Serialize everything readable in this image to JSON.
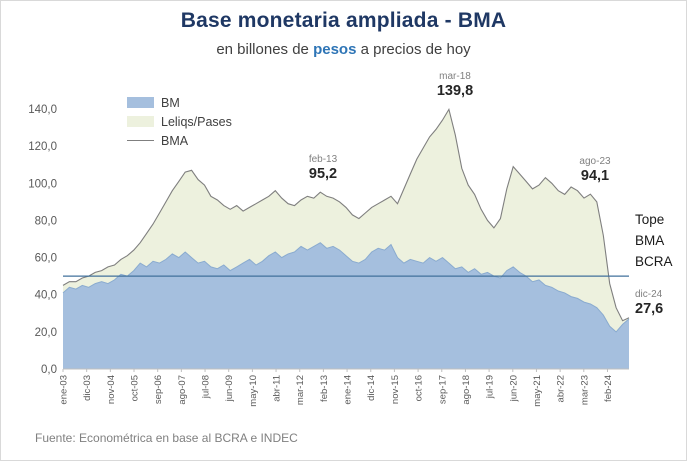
{
  "chart_data": {
    "type": "area",
    "title": "Base monetaria ampliada - BMA",
    "subtitle": {
      "prefix": "en billones de ",
      "highlight": "pesos",
      "suffix": " a precios de hoy"
    },
    "ylim": [
      0,
      140
    ],
    "y_ticks": [
      "0,0",
      "20,0",
      "40,0",
      "60,0",
      "80,0",
      "100,0",
      "120,0",
      "140,0"
    ],
    "x_tick_labels": [
      "ene-03",
      "dic-03",
      "nov-04",
      "oct-05",
      "sep-06",
      "ago-07",
      "jul-08",
      "jun-09",
      "may-10",
      "abr-11",
      "mar-12",
      "feb-13",
      "ene-14",
      "dic-14",
      "nov-15",
      "oct-16",
      "sep-17",
      "ago-18",
      "jul-19",
      "jun-20",
      "may-21",
      "abr-22",
      "mar-23",
      "feb-24"
    ],
    "x_tick_months": [
      0,
      11,
      22,
      33,
      44,
      55,
      66,
      77,
      88,
      99,
      110,
      121,
      132,
      143,
      154,
      165,
      176,
      187,
      198,
      209,
      220,
      231,
      242,
      253
    ],
    "months_total": 264,
    "legend": [
      {
        "label": "BM",
        "swatch": "area",
        "color": "#a5bfde"
      },
      {
        "label": "Leliqs/Pases",
        "swatch": "area",
        "color": "#edf1de"
      },
      {
        "label": "BMA",
        "swatch": "line",
        "color": "#7f7f7f"
      }
    ],
    "series": [
      {
        "name": "BM",
        "type": "area",
        "values": [
          41,
          44,
          43,
          45,
          44,
          46,
          47,
          46,
          48,
          51,
          50,
          53,
          57,
          55,
          58,
          57,
          59,
          62,
          60,
          63,
          60,
          57,
          58,
          55,
          54,
          56,
          53,
          55,
          57,
          59,
          56,
          58,
          61,
          63,
          60,
          62,
          63,
          66,
          64,
          66,
          68,
          65,
          66,
          64,
          61,
          58,
          57,
          59,
          63,
          65,
          64,
          67,
          60,
          57,
          59,
          58,
          57,
          60,
          58,
          60,
          57,
          54,
          55,
          52,
          54,
          51,
          52,
          50,
          49,
          53,
          55,
          52,
          50,
          47,
          48,
          45,
          44,
          42,
          41,
          39,
          38,
          36,
          35,
          33,
          29,
          23,
          20,
          24,
          27
        ]
      },
      {
        "name": "BMA",
        "type": "line",
        "values": [
          45,
          47,
          47,
          49,
          50,
          52,
          53,
          55,
          56,
          59,
          61,
          64,
          68,
          73,
          78,
          84,
          90,
          96,
          101,
          106,
          107,
          102,
          99,
          93,
          91,
          88,
          86,
          88,
          85,
          87,
          89,
          91,
          93,
          96,
          92,
          89,
          88,
          91,
          93,
          92,
          95.2,
          93,
          92,
          90,
          87,
          83,
          81,
          84,
          87,
          89,
          91,
          93,
          89,
          97,
          105,
          113,
          119,
          125,
          129,
          134,
          139.8,
          126,
          108,
          99,
          94,
          86,
          80,
          76,
          81,
          97,
          109,
          105,
          101,
          97,
          99,
          103,
          100,
          96,
          94,
          98,
          96,
          92,
          94.1,
          90,
          72,
          46,
          33,
          26,
          27.6
        ]
      }
    ],
    "annotations": [
      {
        "date": "feb-13",
        "value": "95,2",
        "value_num": 95.2,
        "month": 121
      },
      {
        "date": "mar-18",
        "value": "139,8",
        "value_num": 139.8,
        "month": 182
      },
      {
        "date": "ago-23",
        "value": "94,1",
        "value_num": 94.1,
        "month": 247
      }
    ],
    "right_annotation": {
      "date": "dic-24",
      "value": "27,6",
      "value_num": 27.6
    },
    "tope": {
      "lines": [
        "Tope",
        "BMA",
        "BCRA"
      ],
      "value": 50,
      "color": "#41719c"
    },
    "colors": {
      "bm_area": "#a5bfde",
      "bm_edge": "#8aabcf",
      "leliqs_area": "#edf1de",
      "bma_line": "#7f7f7f",
      "tope_line": "#41719c",
      "axis": "#bfbfbf",
      "tick_text": "#595959"
    },
    "source": "Fuente: Econométrica en base al BCRA e INDEC"
  }
}
